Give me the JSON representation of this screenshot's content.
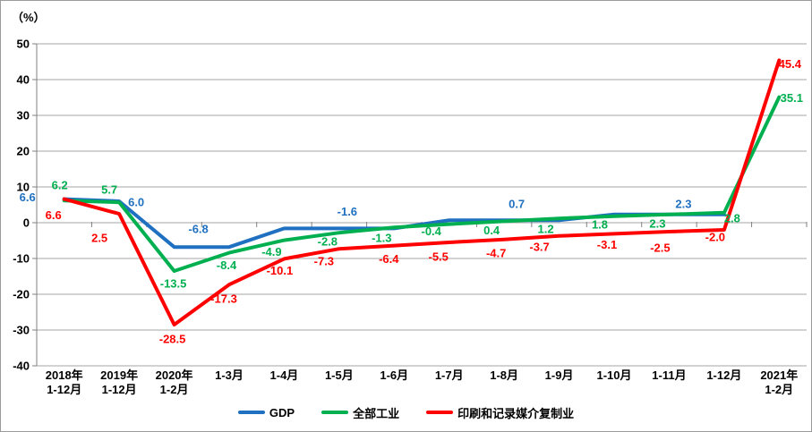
{
  "unit_label": "（%）",
  "chart_data": {
    "type": "line",
    "title": "",
    "xlabel": "",
    "ylabel": "（%）",
    "ylim": [
      -40,
      50
    ],
    "yticks": [
      50,
      40,
      30,
      20,
      10,
      0,
      -10,
      -20,
      -30,
      -40
    ],
    "grid": true,
    "legend_position": "bottom",
    "categories": [
      [
        "2018年",
        "1-12月"
      ],
      [
        "2019年",
        "1-12月"
      ],
      [
        "2020年",
        "1-2月"
      ],
      [
        "1-3月"
      ],
      [
        "1-4月"
      ],
      [
        "1-5月"
      ],
      [
        "1-6月"
      ],
      [
        "1-7月"
      ],
      [
        "1-8月"
      ],
      [
        "1-9月"
      ],
      [
        "1-10月"
      ],
      [
        "1-11月"
      ],
      [
        "1-12月"
      ],
      [
        "2021年",
        "1-2月"
      ]
    ],
    "series": [
      {
        "name": "GDP",
        "color": "#1F70C1",
        "values": [
          6.6,
          6.0,
          -6.8,
          -6.8,
          -1.6,
          -1.6,
          -1.6,
          0.7,
          0.7,
          0.7,
          2.3,
          2.3,
          2.3,
          null
        ],
        "labels": [
          {
            "i": 0,
            "text": "6.6",
            "dx": -41,
            "dy": -2
          },
          {
            "i": 1,
            "text": "6.0",
            "dx": 19,
            "dy": 1
          },
          {
            "i": 2,
            "text": "-6.8",
            "dx": 27,
            "dy": -20
          },
          {
            "i": 5,
            "text": "-1.6",
            "dx": 9,
            "dy": -19
          },
          {
            "i": 8,
            "text": "0.7",
            "dx": 14,
            "dy": -18
          },
          {
            "i": 11,
            "text": "2.3",
            "dx": 16,
            "dy": -12
          }
        ]
      },
      {
        "name": "全部工业",
        "color": "#00B050",
        "values": [
          6.2,
          5.7,
          -13.5,
          -8.4,
          -4.9,
          -2.8,
          -1.3,
          -0.4,
          0.4,
          1.2,
          1.8,
          2.3,
          2.8,
          35.1
        ],
        "labels": [
          {
            "i": 0,
            "text": "6.2",
            "dx": -5,
            "dy": -17
          },
          {
            "i": 1,
            "text": "5.7",
            "dx": -11,
            "dy": -14
          },
          {
            "i": 2,
            "text": "-13.5",
            "dx": -1,
            "dy": 14
          },
          {
            "i": 3,
            "text": "-8.4",
            "dx": -3,
            "dy": 14
          },
          {
            "i": 4,
            "text": "-4.9",
            "dx": -14,
            "dy": 13
          },
          {
            "i": 5,
            "text": "-2.8",
            "dx": -13,
            "dy": 10
          },
          {
            "i": 6,
            "text": "-1.3",
            "dx": -14,
            "dy": 12
          },
          {
            "i": 7,
            "text": "-0.4",
            "dx": -20,
            "dy": 8
          },
          {
            "i": 8,
            "text": "0.4",
            "dx": -14,
            "dy": 10
          },
          {
            "i": 9,
            "text": "1.2",
            "dx": -15,
            "dy": 12
          },
          {
            "i": 10,
            "text": "1.8",
            "dx": -16,
            "dy": 9
          },
          {
            "i": 11,
            "text": "2.3",
            "dx": -13,
            "dy": 10
          },
          {
            "i": 12,
            "text": "2.8",
            "dx": 9,
            "dy": 6
          },
          {
            "i": 13,
            "text": "35.1",
            "dx": 14,
            "dy": 1
          }
        ]
      },
      {
        "name": "印刷和记录媒介复制业",
        "color": "#FF0000",
        "values": [
          6.6,
          2.5,
          -28.5,
          -17.3,
          -10.1,
          -7.3,
          -6.4,
          -5.5,
          -4.7,
          -3.7,
          -3.1,
          -2.5,
          -2.0,
          45.4
        ],
        "labels": [
          {
            "i": 0,
            "text": "6.6",
            "dx": -12,
            "dy": 18
          },
          {
            "i": 1,
            "text": "2.5",
            "dx": -22,
            "dy": 27
          },
          {
            "i": 2,
            "text": "-28.5",
            "dx": -2,
            "dy": 16
          },
          {
            "i": 3,
            "text": "-17.3",
            "dx": -6,
            "dy": 16
          },
          {
            "i": 4,
            "text": "-10.1",
            "dx": -5,
            "dy": 13
          },
          {
            "i": 5,
            "text": "-7.3",
            "dx": -17,
            "dy": 14
          },
          {
            "i": 6,
            "text": "-6.4",
            "dx": -6,
            "dy": 15
          },
          {
            "i": 7,
            "text": "-5.5",
            "dx": -12,
            "dy": 16
          },
          {
            "i": 8,
            "text": "-4.7",
            "dx": -9,
            "dy": 15
          },
          {
            "i": 9,
            "text": "-3.7",
            "dx": -22,
            "dy": 12
          },
          {
            "i": 10,
            "text": "-3.1",
            "dx": -8,
            "dy": 12
          },
          {
            "i": 11,
            "text": "-2.5",
            "dx": -10,
            "dy": 18
          },
          {
            "i": 12,
            "text": "-2.0",
            "dx": -10,
            "dy": 8
          },
          {
            "i": 13,
            "text": "45.4",
            "dx": 12,
            "dy": 4
          }
        ]
      }
    ],
    "colors": {
      "gridline": "#A6A6A6",
      "axis": "#808080",
      "tick_text": "#000000"
    }
  }
}
